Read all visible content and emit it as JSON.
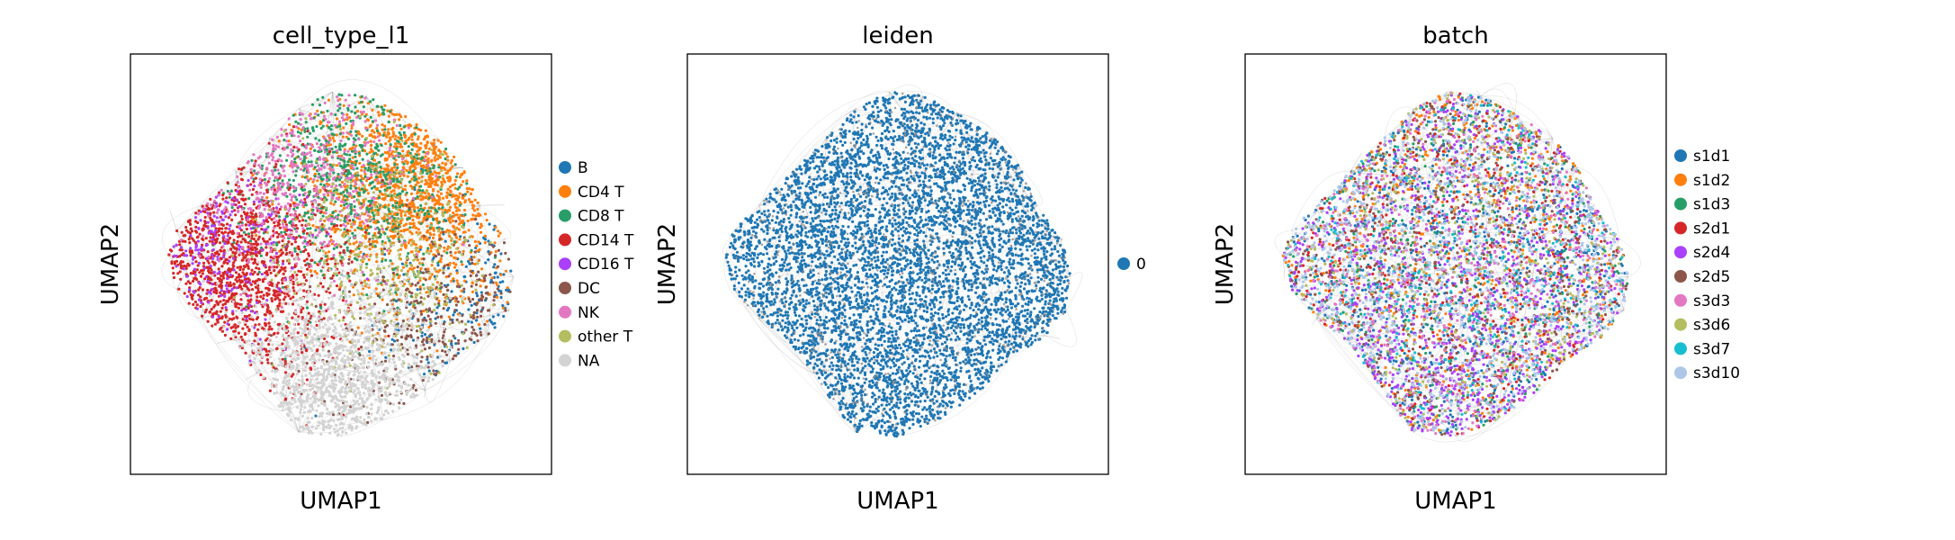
{
  "chart_data": [
    {
      "type": "scatter",
      "title": "cell_type_l1",
      "xlabel": "UMAP1",
      "ylabel": "UMAP2",
      "grid": false,
      "ticks": false,
      "legend_position": "right",
      "series": [
        {
          "name": "B",
          "color": "#1f77b4"
        },
        {
          "name": "CD4 T",
          "color": "#ff7f0e"
        },
        {
          "name": "CD8 T",
          "color": "#279e68"
        },
        {
          "name": "CD14 T",
          "color": "#d62728"
        },
        {
          "name": "CD16 T",
          "color": "#aa40fc"
        },
        {
          "name": "DC",
          "color": "#8c564b"
        },
        {
          "name": "NK",
          "color": "#e377c2"
        },
        {
          "name": "other T",
          "color": "#b5bd61"
        },
        {
          "name": "NA",
          "color": "#d3d3d3"
        }
      ]
    },
    {
      "type": "scatter",
      "title": "leiden",
      "xlabel": "UMAP1",
      "ylabel": "UMAP2",
      "grid": false,
      "ticks": false,
      "legend_position": "right",
      "series": [
        {
          "name": "0",
          "color": "#1f77b4"
        }
      ]
    },
    {
      "type": "scatter",
      "title": "batch",
      "xlabel": "UMAP1",
      "ylabel": "UMAP2",
      "grid": false,
      "ticks": false,
      "legend_position": "right",
      "series": [
        {
          "name": "s1d1",
          "color": "#1f77b4"
        },
        {
          "name": "s1d2",
          "color": "#ff7f0e"
        },
        {
          "name": "s1d3",
          "color": "#279e68"
        },
        {
          "name": "s2d1",
          "color": "#d62728"
        },
        {
          "name": "s2d4",
          "color": "#aa40fc"
        },
        {
          "name": "s2d5",
          "color": "#8c564b"
        },
        {
          "name": "s3d3",
          "color": "#e377c2"
        },
        {
          "name": "s3d6",
          "color": "#b5bd61"
        },
        {
          "name": "s3d7",
          "color": "#17becf"
        },
        {
          "name": "s3d10",
          "color": "#aec7e8"
        }
      ]
    }
  ]
}
